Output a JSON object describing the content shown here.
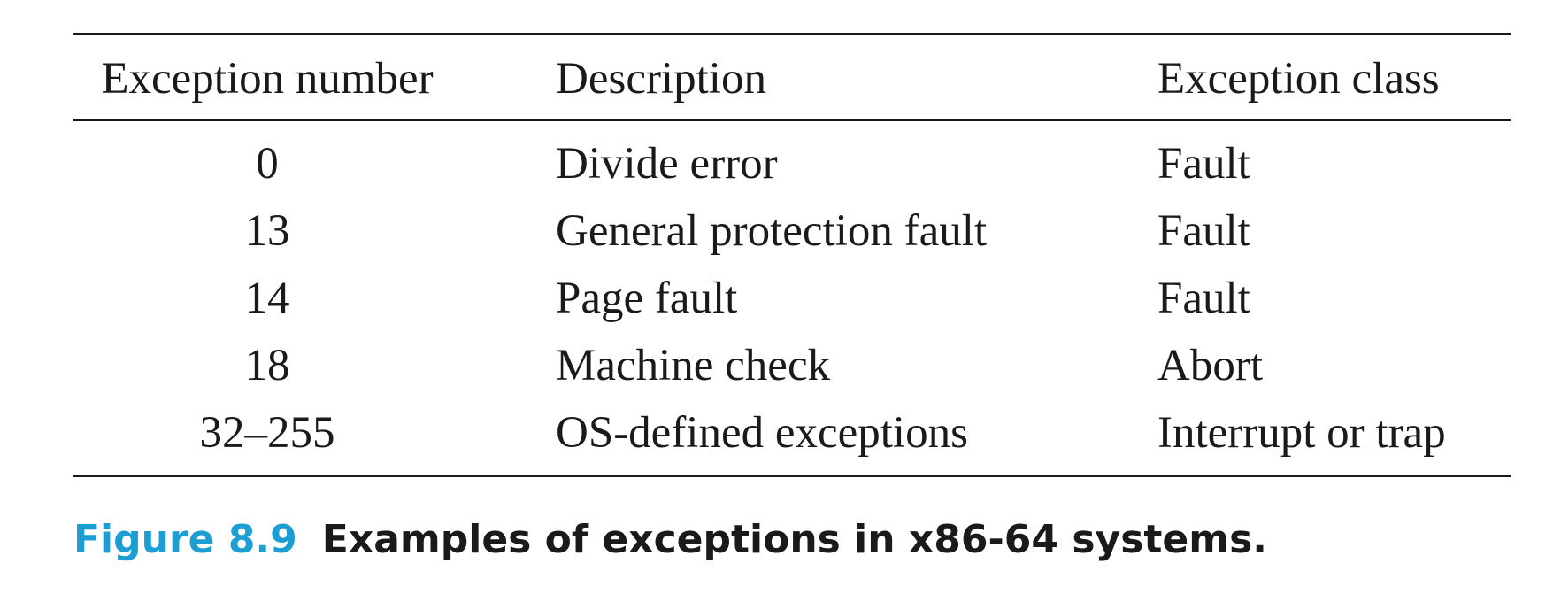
{
  "table": {
    "headers": {
      "number": "Exception number",
      "description": "Description",
      "class": "Exception class"
    },
    "rows": [
      {
        "number": "0",
        "description": "Divide error",
        "class": "Fault"
      },
      {
        "number": "13",
        "description": "General protection fault",
        "class": "Fault"
      },
      {
        "number": "14",
        "description": "Page fault",
        "class": "Fault"
      },
      {
        "number": "18",
        "description": "Machine check",
        "class": "Abort"
      },
      {
        "number": "32–255",
        "description": "OS-defined exceptions",
        "class": "Interrupt or trap"
      }
    ]
  },
  "caption": {
    "label": "Figure 8.9",
    "text": "Examples of exceptions in x86-64 systems."
  },
  "colors": {
    "caption_label": "#1c9ed3",
    "text": "#1a1a1a"
  }
}
